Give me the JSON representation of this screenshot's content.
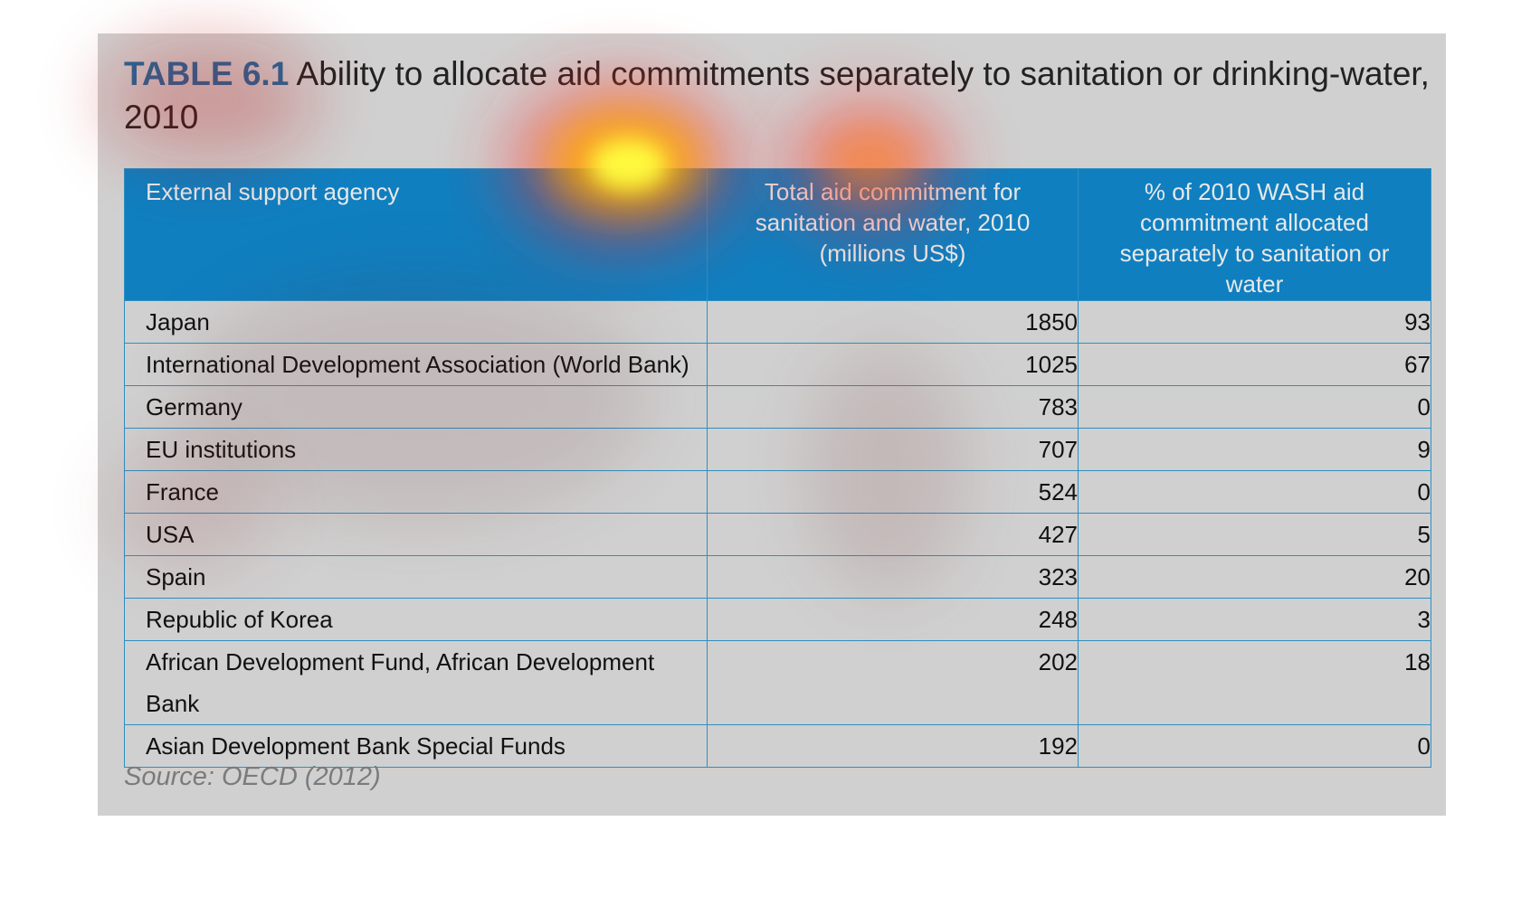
{
  "title": {
    "label": "TABLE 6.1",
    "text": "Ability to allocate aid commitments separately to sanitation or drinking-water, 2010"
  },
  "table": {
    "headers": [
      "External support agency",
      "Total aid commitment for sanitation and water, 2010 (millions US$)",
      "% of 2010 WASH aid commitment allocated separately to sanitation or water"
    ],
    "rows": [
      {
        "agency": "Japan",
        "commitment": "1850",
        "percent": "93"
      },
      {
        "agency": "International Development Association (World Bank)",
        "commitment": "1025",
        "percent": "67"
      },
      {
        "agency": "Germany",
        "commitment": "783",
        "percent": "0"
      },
      {
        "agency": "EU institutions",
        "commitment": "707",
        "percent": "9"
      },
      {
        "agency": "France",
        "commitment": "524",
        "percent": "0"
      },
      {
        "agency": "USA",
        "commitment": "427",
        "percent": "5"
      },
      {
        "agency": "Spain",
        "commitment": "323",
        "percent": "20"
      },
      {
        "agency": "Republic of Korea",
        "commitment": "248",
        "percent": "3"
      },
      {
        "agency": "African Development Fund, African Development Bank",
        "commitment": "202",
        "percent": "18"
      },
      {
        "agency": "Asian Development Bank Special Funds",
        "commitment": "192",
        "percent": "0"
      }
    ]
  },
  "source": "Source: OECD (2012)",
  "colors": {
    "panel_background": "#d0d0d0",
    "header_background": "#0f7fc0",
    "title_label": "#1b6a9e",
    "border": "#2f8fc0"
  }
}
